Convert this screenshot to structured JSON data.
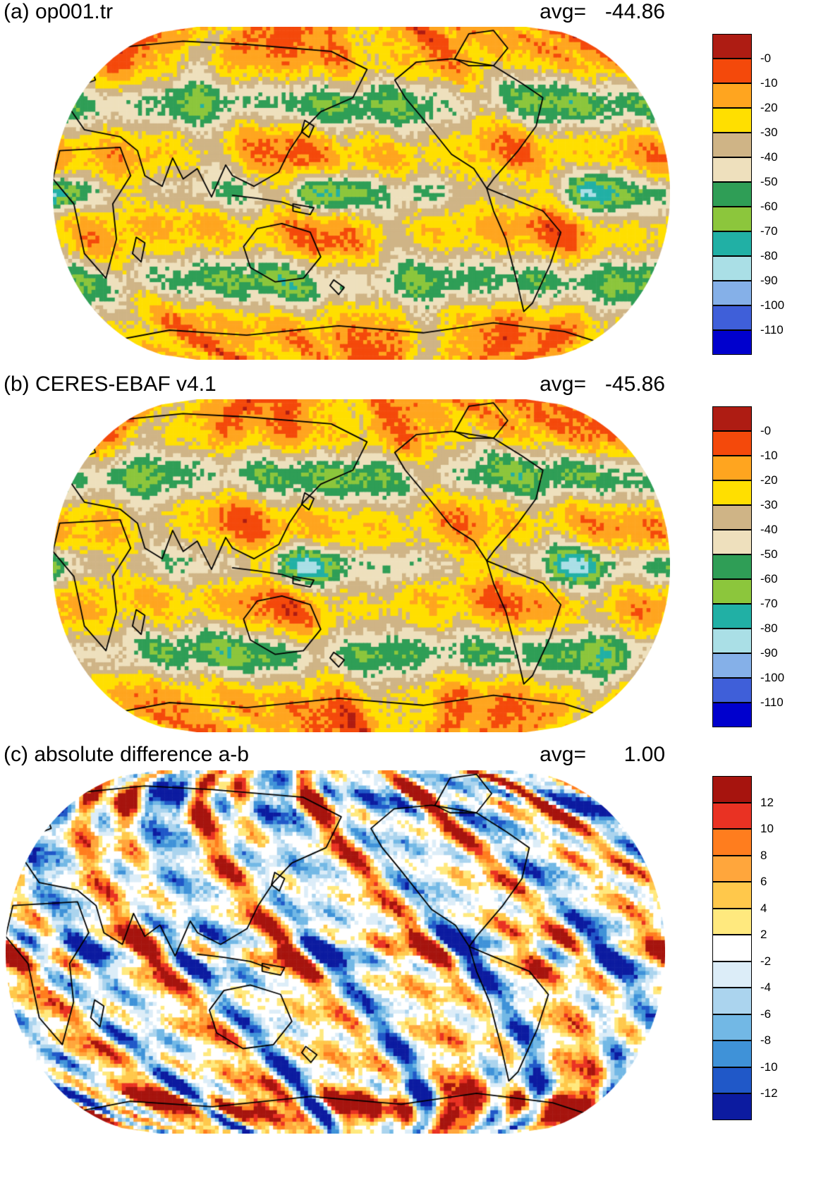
{
  "figure": {
    "panels": [
      {
        "id": "a",
        "label": "(a) op001.tr",
        "avg_label": "avg=",
        "avg_value": "-44.86"
      },
      {
        "id": "b",
        "label": "(b) CERES-EBAF v4.1",
        "avg_label": "avg=",
        "avg_value": "-45.86"
      },
      {
        "id": "c",
        "label": "(c) absolute difference a-b",
        "avg_label": "avg=",
        "avg_value": "1.00"
      }
    ]
  },
  "chart_data": [
    {
      "type": "heatmap",
      "title": "(a) op001.tr",
      "projection": "robinson-world-map",
      "stat_label": "avg=",
      "stat_value": -44.86,
      "colorbar_position": "right",
      "colorbar": {
        "tick_labels": [
          "-0",
          "-10",
          "-20",
          "-30",
          "-40",
          "-50",
          "-60",
          "-70",
          "-80",
          "-90",
          "-100",
          "-110"
        ],
        "tick_values": [
          0,
          -10,
          -20,
          -30,
          -40,
          -50,
          -60,
          -70,
          -80,
          -90,
          -100,
          -110
        ],
        "colors": [
          "#ae1c13",
          "#f4490b",
          "#ffa51f",
          "#ffdf00",
          "#cfb486",
          "#eee0bd",
          "#2f9e56",
          "#8cc63c",
          "#21b0a5",
          "#aadfe6",
          "#85b0e8",
          "#3f5fd9",
          "#0000cd"
        ]
      }
    },
    {
      "type": "heatmap",
      "title": "(b) CERES-EBAF v4.1",
      "projection": "robinson-world-map",
      "stat_label": "avg=",
      "stat_value": -45.86,
      "colorbar_position": "right",
      "colorbar": {
        "tick_labels": [
          "-0",
          "-10",
          "-20",
          "-30",
          "-40",
          "-50",
          "-60",
          "-70",
          "-80",
          "-90",
          "-100",
          "-110"
        ],
        "tick_values": [
          0,
          -10,
          -20,
          -30,
          -40,
          -50,
          -60,
          -70,
          -80,
          -90,
          -100,
          -110
        ],
        "colors": [
          "#ae1c13",
          "#f4490b",
          "#ffa51f",
          "#ffdf00",
          "#cfb486",
          "#eee0bd",
          "#2f9e56",
          "#8cc63c",
          "#21b0a5",
          "#aadfe6",
          "#85b0e8",
          "#3f5fd9",
          "#0000cd"
        ]
      }
    },
    {
      "type": "heatmap",
      "title": "(c) absolute difference a-b",
      "projection": "robinson-world-map",
      "stat_label": "avg=",
      "stat_value": 1.0,
      "colorbar_position": "right",
      "colorbar": {
        "tick_labels": [
          "12",
          "10",
          "8",
          "6",
          "4",
          "2",
          "-2",
          "-4",
          "-6",
          "-8",
          "-10",
          "-12"
        ],
        "tick_values": [
          12,
          10,
          8,
          6,
          4,
          2,
          -2,
          -4,
          -6,
          -8,
          -10,
          -12
        ],
        "colors": [
          "#a6140e",
          "#e93223",
          "#ff7d1e",
          "#ffa63c",
          "#ffc84b",
          "#ffe97e",
          "#ffffff",
          "#dcedf8",
          "#abd4ee",
          "#72b8e5",
          "#3f92d8",
          "#2058c8",
          "#0c1ba0"
        ]
      }
    }
  ]
}
